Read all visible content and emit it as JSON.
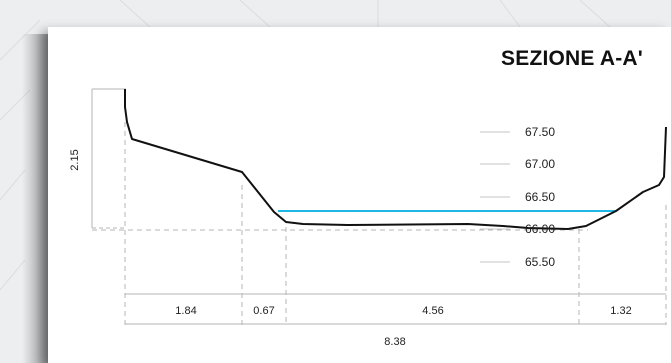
{
  "title": "SEZIONE A-A'",
  "height_label": "2.15",
  "elevation_labels": [
    "67.50",
    "67.00",
    "66.50",
    "66.00",
    "65.50"
  ],
  "segment_labels": [
    "1.84",
    "0.67",
    "4.56",
    "1.32"
  ],
  "total_width_label": "8.38",
  "colors": {
    "profile": "#111111",
    "water_level": "#1eb7e6",
    "dimension_line": "#b5b5b5"
  }
}
